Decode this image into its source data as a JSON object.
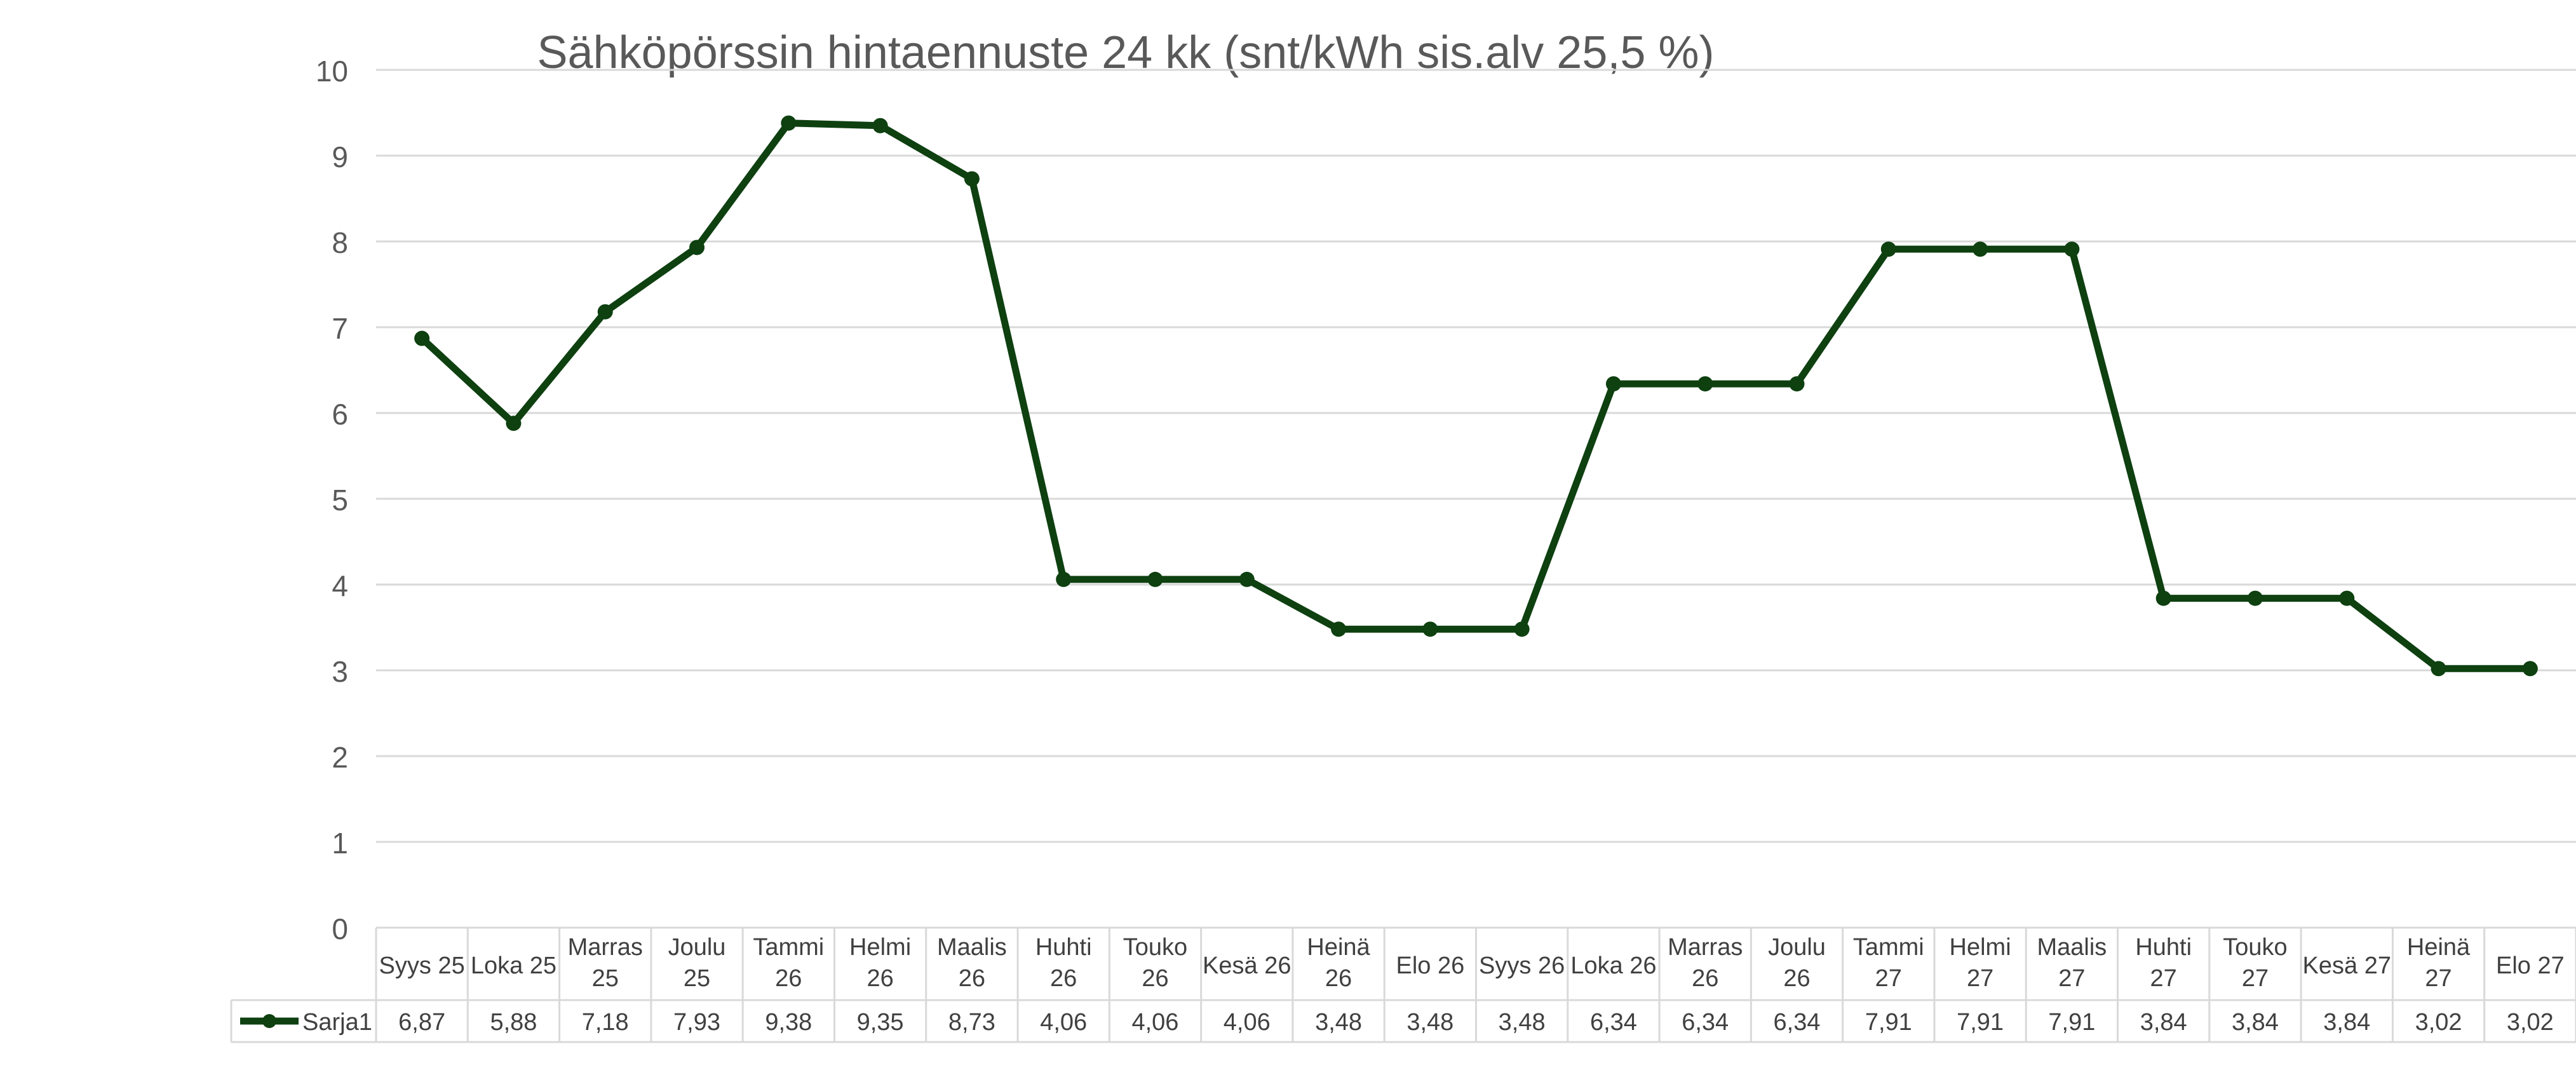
{
  "chart_data": {
    "type": "line",
    "title": "Sähköpörssin hintaennuste 24 kk (snt/kWh sis.alv 25,5 %)",
    "xlabel": "",
    "ylabel": "",
    "ylim": [
      0,
      10
    ],
    "yticks": [
      "0",
      "1",
      "2",
      "3",
      "4",
      "5",
      "6",
      "7",
      "8",
      "9",
      "10"
    ],
    "grid": true,
    "categories": [
      [
        "Syys 25"
      ],
      [
        "Loka 25"
      ],
      [
        "Marras",
        "25"
      ],
      [
        "Joulu",
        "25"
      ],
      [
        "Tammi",
        "26"
      ],
      [
        "Helmi",
        "26"
      ],
      [
        "Maalis",
        "26"
      ],
      [
        "Huhti",
        "26"
      ],
      [
        "Touko",
        "26"
      ],
      [
        "Kesä 26"
      ],
      [
        "Heinä",
        "26"
      ],
      [
        "Elo 26"
      ],
      [
        "Syys 26"
      ],
      [
        "Loka 26"
      ],
      [
        "Marras",
        "26"
      ],
      [
        "Joulu",
        "26"
      ],
      [
        "Tammi",
        "27"
      ],
      [
        "Helmi",
        "27"
      ],
      [
        "Maalis",
        "27"
      ],
      [
        "Huhti",
        "27"
      ],
      [
        "Touko",
        "27"
      ],
      [
        "Kesä 27"
      ],
      [
        "Heinä",
        "27"
      ],
      [
        "Elo 27"
      ]
    ],
    "series": [
      {
        "name": "Sarja1",
        "color": "#0e4010",
        "values": [
          6.87,
          5.88,
          7.18,
          7.93,
          9.38,
          9.35,
          8.73,
          4.06,
          4.06,
          4.06,
          3.48,
          3.48,
          3.48,
          6.34,
          6.34,
          6.34,
          7.91,
          7.91,
          7.91,
          3.84,
          3.84,
          3.84,
          3.02,
          3.02
        ],
        "labels": [
          "6,87",
          "5,88",
          "7,18",
          "7,93",
          "9,38",
          "9,35",
          "8,73",
          "4,06",
          "4,06",
          "4,06",
          "3,48",
          "3,48",
          "3,48",
          "6,34",
          "6,34",
          "6,34",
          "7,91",
          "7,91",
          "7,91",
          "3,84",
          "3,84",
          "3,84",
          "3,02",
          "3,02"
        ]
      }
    ],
    "data_table": true
  },
  "colors": {
    "gridline": "#d9d9d9",
    "table_border": "#d9d9d9",
    "tick_text": "#595959",
    "title_text": "#595959",
    "cell_text": "#404040"
  }
}
